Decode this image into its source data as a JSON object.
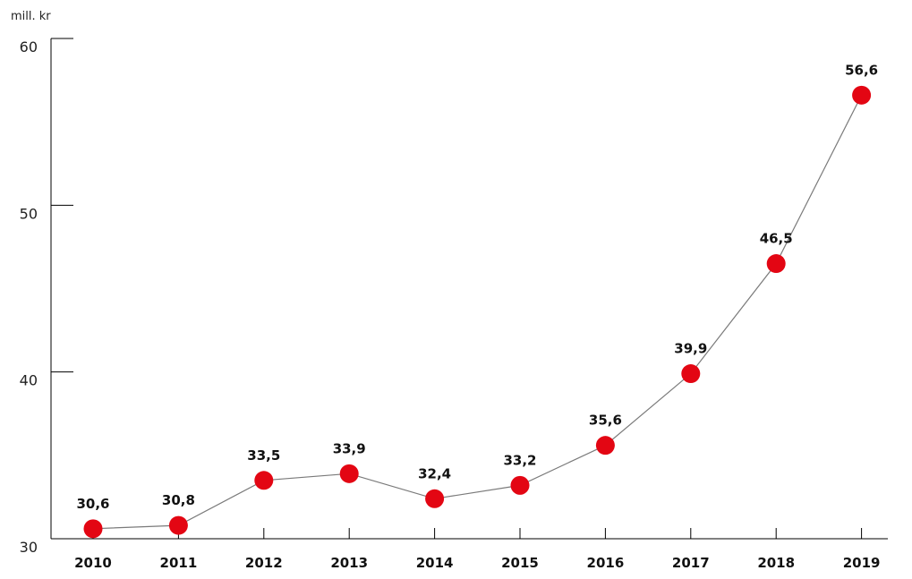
{
  "chart_data": {
    "type": "line",
    "unit_label": "mill. kr",
    "categories": [
      "2010",
      "2011",
      "2012",
      "2013",
      "2014",
      "2015",
      "2016",
      "2017",
      "2018",
      "2019"
    ],
    "series": [
      {
        "values": [
          30.6,
          30.8,
          33.5,
          33.9,
          32.4,
          33.2,
          35.6,
          39.9,
          46.5,
          56.6
        ]
      }
    ],
    "data_labels": [
      "30,6",
      "30,8",
      "33,5",
      "33,9",
      "32,4",
      "33,2",
      "35,6",
      "39,9",
      "46,5",
      "56,6"
    ],
    "yticks": [
      30,
      40,
      50,
      60
    ],
    "ytick_labels": [
      "30",
      "40",
      "50",
      "60"
    ],
    "ylim": [
      30,
      60
    ],
    "grid": false,
    "colors": {
      "marker": "#e30613",
      "line": "#7a7a7a",
      "axis": "#000000"
    }
  }
}
